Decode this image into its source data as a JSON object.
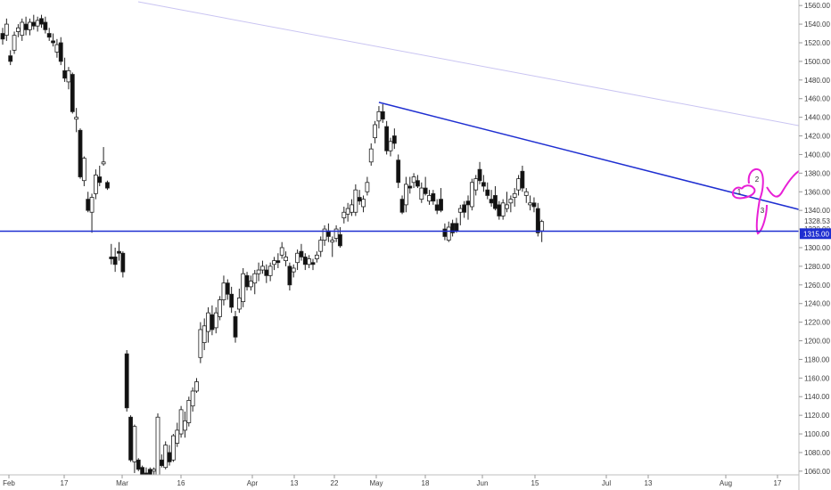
{
  "chart_data": {
    "type": "candlestick",
    "y_axis": {
      "min": 1057,
      "max": 1564,
      "ticks": [
        1060,
        1080,
        1100,
        1120,
        1140,
        1160,
        1180,
        1200,
        1220,
        1240,
        1260,
        1280,
        1300,
        1320,
        1340,
        1360,
        1380,
        1400,
        1420,
        1440,
        1460,
        1480,
        1500,
        1520,
        1540,
        1560
      ],
      "tick_labels": [
        "1060.00",
        "1080.00",
        "1100.00",
        "1120.00",
        "1140.00",
        "1160.00",
        "1180.00",
        "1200.00",
        "1220.00",
        "1240.00",
        "1260.00",
        "1280.00",
        "1300.00",
        "1320.00",
        "1340.00",
        "1360.00",
        "1380.00",
        "1400.00",
        "1420.00",
        "1440.00",
        "1460.00",
        "1480.00",
        "1500.00",
        "1520.00",
        "1540.00",
        "1560.00"
      ],
      "position": "right"
    },
    "x_axis": {
      "labels": [
        "Feb",
        "17",
        "Mar",
        "16",
        "Apr",
        "13",
        "22",
        "May",
        "18",
        "Jun",
        "15",
        "Jul",
        "13",
        "Aug",
        "17"
      ]
    },
    "last_price": {
      "value": 1328.53,
      "label": "1328.53"
    },
    "support_level": {
      "value": 1315.0,
      "label": "1315.00",
      "color": "#1f2fd1"
    },
    "trendlines": [
      {
        "name": "upper-trendline",
        "from": [
          0,
          1570
        ],
        "to": [
          210,
          1432
        ],
        "color": "#c9c4f2"
      },
      {
        "name": "descending-trendline",
        "from": [
          132,
          1456
        ],
        "to": [
          210,
          1341
        ],
        "color": "#1f2fd1"
      }
    ],
    "annotations": {
      "labels": [
        "1",
        "2",
        "3"
      ],
      "path_color": "#e81fd6"
    },
    "grid": false,
    "candles": [
      [
        0,
        1530,
        1536,
        1518,
        1524
      ],
      [
        1,
        1528,
        1546,
        1522,
        1540
      ],
      [
        2,
        1506,
        1512,
        1496,
        1500
      ],
      [
        3,
        1512,
        1532,
        1508,
        1528
      ],
      [
        4,
        1532,
        1540,
        1526,
        1536
      ],
      [
        5,
        1528,
        1546,
        1522,
        1542
      ],
      [
        6,
        1540,
        1548,
        1528,
        1534
      ],
      [
        7,
        1534,
        1546,
        1528,
        1542
      ],
      [
        8,
        1542,
        1550,
        1534,
        1538
      ],
      [
        9,
        1538,
        1548,
        1532,
        1544
      ],
      [
        10,
        1546,
        1550,
        1536,
        1540
      ],
      [
        11,
        1542,
        1548,
        1530,
        1534
      ],
      [
        12,
        1530,
        1536,
        1522,
        1526
      ],
      [
        13,
        1522,
        1530,
        1516,
        1520
      ],
      [
        14,
        1510,
        1524,
        1504,
        1518
      ],
      [
        15,
        1520,
        1526,
        1496,
        1500
      ],
      [
        16,
        1490,
        1504,
        1478,
        1482
      ],
      [
        17,
        1478,
        1494,
        1470,
        1490
      ],
      [
        18,
        1486,
        1488,
        1444,
        1446
      ],
      [
        19,
        1438,
        1450,
        1424,
        1440
      ],
      [
        20,
        1426,
        1428,
        1374,
        1376
      ],
      [
        21,
        1372,
        1398,
        1366,
        1396
      ],
      [
        22,
        1352,
        1360,
        1338,
        1340
      ],
      [
        23,
        1338,
        1358,
        1316,
        1354
      ],
      [
        24,
        1358,
        1384,
        1352,
        1378
      ],
      [
        25,
        1376,
        1388,
        1366,
        1370
      ],
      [
        26,
        1390,
        1408,
        1388,
        1392
      ],
      [
        27,
        1370,
        1372,
        1362,
        1364
      ],
      [
        28,
        1290,
        1304,
        1282,
        1288
      ],
      [
        29,
        1290,
        1300,
        1274,
        1282
      ],
      [
        30,
        1296,
        1306,
        1286,
        1294
      ],
      [
        31,
        1294,
        1296,
        1268,
        1274
      ],
      [
        32,
        1186,
        1190,
        1124,
        1128
      ],
      [
        33,
        1118,
        1120,
        1070,
        1072
      ],
      [
        34,
        1070,
        1110,
        1058,
        1108
      ],
      [
        35,
        1072,
        1074,
        1060,
        1062
      ],
      [
        36,
        1064,
        1066,
        1052,
        1054
      ],
      [
        37,
        1058,
        1064,
        1048,
        1052
      ],
      [
        38,
        1062,
        1064,
        1044,
        1050
      ],
      [
        39,
        1060,
        1064,
        1050,
        1062
      ],
      [
        40,
        1056,
        1122,
        1052,
        1118
      ],
      [
        41,
        1072,
        1078,
        1064,
        1066
      ],
      [
        42,
        1064,
        1092,
        1062,
        1088
      ],
      [
        43,
        1080,
        1088,
        1066,
        1070
      ],
      [
        44,
        1072,
        1100,
        1070,
        1098
      ],
      [
        45,
        1090,
        1112,
        1086,
        1104
      ],
      [
        46,
        1100,
        1130,
        1096,
        1126
      ],
      [
        47,
        1104,
        1124,
        1096,
        1114
      ],
      [
        48,
        1112,
        1140,
        1108,
        1136
      ],
      [
        49,
        1130,
        1150,
        1124,
        1146
      ],
      [
        50,
        1146,
        1160,
        1144,
        1156
      ],
      [
        51,
        1182,
        1220,
        1176,
        1212
      ],
      [
        52,
        1198,
        1224,
        1190,
        1216
      ],
      [
        53,
        1210,
        1236,
        1198,
        1230
      ],
      [
        54,
        1228,
        1238,
        1206,
        1212
      ],
      [
        55,
        1214,
        1236,
        1208,
        1230
      ],
      [
        56,
        1226,
        1248,
        1222,
        1244
      ],
      [
        57,
        1244,
        1270,
        1238,
        1262
      ],
      [
        58,
        1262,
        1266,
        1244,
        1250
      ],
      [
        59,
        1250,
        1258,
        1230,
        1236
      ],
      [
        60,
        1226,
        1232,
        1198,
        1204
      ],
      [
        61,
        1234,
        1256,
        1230,
        1246
      ],
      [
        62,
        1242,
        1278,
        1236,
        1272
      ],
      [
        63,
        1270,
        1274,
        1254,
        1258
      ],
      [
        64,
        1258,
        1270,
        1254,
        1264
      ],
      [
        65,
        1262,
        1276,
        1250,
        1272
      ],
      [
        66,
        1272,
        1284,
        1264,
        1276
      ],
      [
        67,
        1276,
        1286,
        1272,
        1280
      ],
      [
        68,
        1276,
        1282,
        1262,
        1270
      ],
      [
        69,
        1270,
        1284,
        1264,
        1280
      ],
      [
        70,
        1282,
        1290,
        1276,
        1286
      ],
      [
        71,
        1286,
        1294,
        1278,
        1284
      ],
      [
        72,
        1292,
        1306,
        1288,
        1300
      ],
      [
        73,
        1286,
        1296,
        1280,
        1290
      ],
      [
        74,
        1280,
        1284,
        1254,
        1260
      ],
      [
        75,
        1274,
        1282,
        1268,
        1278
      ],
      [
        76,
        1284,
        1298,
        1276,
        1294
      ],
      [
        77,
        1296,
        1304,
        1286,
        1290
      ],
      [
        78,
        1290,
        1294,
        1276,
        1282
      ],
      [
        79,
        1282,
        1292,
        1278,
        1288
      ],
      [
        80,
        1284,
        1288,
        1276,
        1282
      ],
      [
        81,
        1288,
        1296,
        1284,
        1292
      ],
      [
        82,
        1296,
        1312,
        1290,
        1308
      ],
      [
        83,
        1308,
        1324,
        1302,
        1320
      ],
      [
        84,
        1318,
        1326,
        1306,
        1312
      ],
      [
        85,
        1306,
        1312,
        1290,
        1308
      ],
      [
        86,
        1310,
        1324,
        1306,
        1320
      ],
      [
        87,
        1314,
        1322,
        1300,
        1302
      ],
      [
        88,
        1332,
        1344,
        1326,
        1338
      ],
      [
        89,
        1336,
        1348,
        1328,
        1342
      ],
      [
        90,
        1338,
        1352,
        1334,
        1346
      ],
      [
        91,
        1338,
        1368,
        1334,
        1362
      ],
      [
        92,
        1354,
        1362,
        1346,
        1350
      ],
      [
        93,
        1344,
        1356,
        1338,
        1352
      ],
      [
        94,
        1360,
        1376,
        1356,
        1370
      ],
      [
        95,
        1392,
        1412,
        1388,
        1406
      ],
      [
        96,
        1418,
        1436,
        1412,
        1432
      ],
      [
        97,
        1436,
        1452,
        1428,
        1446
      ],
      [
        98,
        1446,
        1454,
        1434,
        1438
      ],
      [
        99,
        1430,
        1436,
        1400,
        1404
      ],
      [
        100,
        1404,
        1418,
        1398,
        1414
      ],
      [
        101,
        1420,
        1428,
        1406,
        1412
      ],
      [
        102,
        1394,
        1400,
        1364,
        1370
      ],
      [
        103,
        1352,
        1356,
        1336,
        1338
      ],
      [
        104,
        1346,
        1376,
        1338,
        1368
      ],
      [
        105,
        1366,
        1376,
        1358,
        1364
      ],
      [
        106,
        1370,
        1380,
        1364,
        1376
      ],
      [
        107,
        1372,
        1378,
        1364,
        1366
      ],
      [
        108,
        1352,
        1370,
        1348,
        1364
      ],
      [
        109,
        1364,
        1376,
        1356,
        1358
      ],
      [
        110,
        1350,
        1362,
        1346,
        1356
      ],
      [
        111,
        1358,
        1362,
        1346,
        1350
      ],
      [
        112,
        1346,
        1352,
        1336,
        1340
      ],
      [
        113,
        1352,
        1364,
        1338,
        1340
      ],
      [
        114,
        1320,
        1326,
        1308,
        1312
      ],
      [
        115,
        1308,
        1328,
        1306,
        1322
      ],
      [
        116,
        1326,
        1330,
        1312,
        1316
      ],
      [
        117,
        1326,
        1332,
        1316,
        1318
      ],
      [
        118,
        1338,
        1346,
        1324,
        1342
      ],
      [
        119,
        1346,
        1350,
        1332,
        1338
      ],
      [
        120,
        1350,
        1356,
        1330,
        1346
      ],
      [
        121,
        1344,
        1374,
        1340,
        1370
      ],
      [
        122,
        1362,
        1378,
        1356,
        1374
      ],
      [
        123,
        1384,
        1392,
        1368,
        1372
      ],
      [
        124,
        1370,
        1378,
        1360,
        1366
      ],
      [
        125,
        1362,
        1370,
        1352,
        1356
      ],
      [
        126,
        1352,
        1362,
        1344,
        1348
      ],
      [
        127,
        1356,
        1366,
        1340,
        1342
      ],
      [
        128,
        1346,
        1350,
        1330,
        1334
      ],
      [
        129,
        1334,
        1352,
        1330,
        1348
      ],
      [
        130,
        1342,
        1360,
        1338,
        1346
      ],
      [
        131,
        1348,
        1356,
        1338,
        1352
      ],
      [
        132,
        1354,
        1364,
        1344,
        1358
      ],
      [
        133,
        1362,
        1378,
        1356,
        1374
      ],
      [
        134,
        1382,
        1388,
        1360,
        1364
      ],
      [
        135,
        1356,
        1364,
        1348,
        1360
      ],
      [
        136,
        1346,
        1356,
        1340,
        1348
      ],
      [
        137,
        1348,
        1354,
        1338,
        1344
      ],
      [
        138,
        1342,
        1348,
        1312,
        1316
      ],
      [
        139,
        1318,
        1330,
        1306,
        1328
      ]
    ]
  }
}
